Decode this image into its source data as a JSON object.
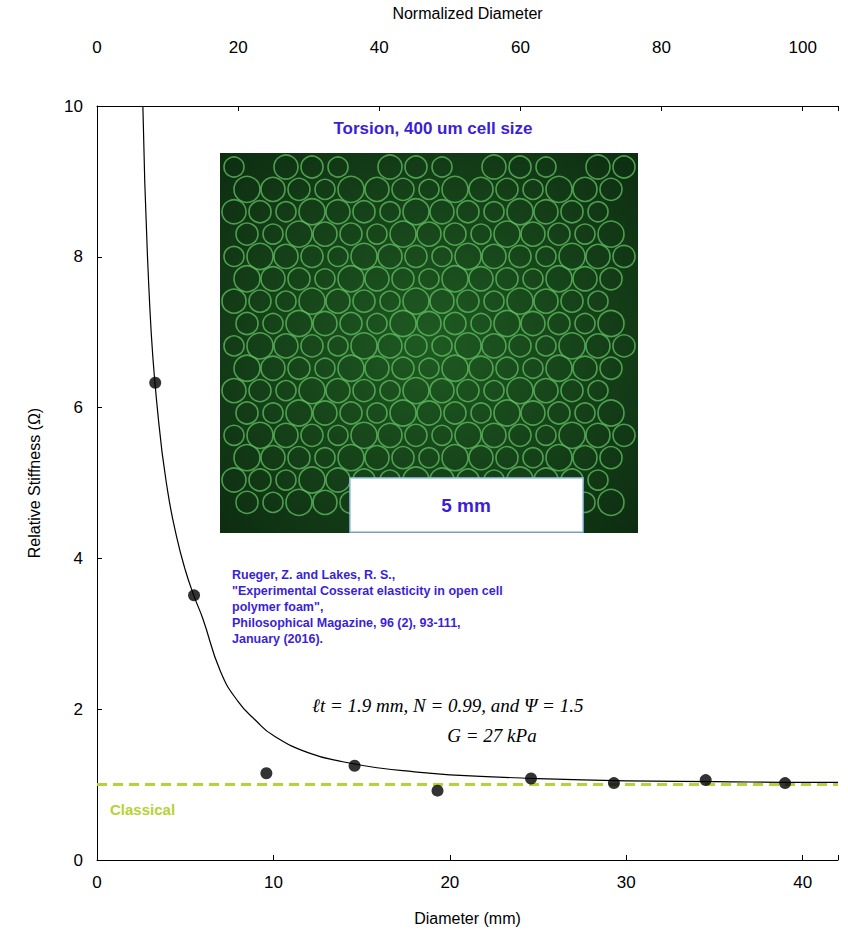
{
  "chart_data": {
    "type": "scatter",
    "title": "Torsion, 400 um cell size",
    "x_label": "Diameter (mm)",
    "x2_label": "Normalized Diameter",
    "y_label": "Relative Stiffness (Ω)",
    "xlim": [
      0,
      42
    ],
    "xticks": [
      0,
      10,
      20,
      30,
      40
    ],
    "x2lim": [
      0,
      105
    ],
    "x2ticks": [
      0,
      20,
      40,
      60,
      80,
      100
    ],
    "ylim": [
      0,
      10
    ],
    "yticks": [
      0,
      2,
      4,
      6,
      8,
      10
    ],
    "grid": false,
    "series": [
      {
        "type": "scatter",
        "color": "#000000",
        "marker": "circle",
        "x": [
          3.3,
          5.5,
          9.6,
          14.6,
          19.3,
          24.6,
          29.3,
          34.5,
          39.0
        ],
        "values": [
          6.33,
          3.51,
          1.15,
          1.25,
          0.92,
          1.08,
          1.02,
          1.06,
          1.02
        ]
      },
      {
        "type": "line",
        "color": "#000000",
        "line_style": "solid",
        "x": [
          2.6,
          3,
          3.5,
          4,
          4.5,
          5,
          5.5,
          6,
          7,
          8,
          9,
          10,
          12,
          14,
          16,
          18,
          20,
          25,
          30,
          35,
          40,
          42
        ],
        "values": [
          10,
          7.3,
          5.8,
          4.9,
          4.3,
          3.85,
          3.5,
          3.2,
          2.5,
          2.1,
          1.85,
          1.65,
          1.42,
          1.3,
          1.22,
          1.17,
          1.13,
          1.08,
          1.05,
          1.04,
          1.03,
          1.03
        ]
      },
      {
        "name": "Classical",
        "type": "line",
        "color": "#b5d334",
        "line_style": "dashed",
        "x": [
          0,
          42
        ],
        "values": [
          1,
          1
        ]
      }
    ],
    "inset_scale_bar": "5 mm",
    "citation": [
      "Rueger, Z. and Lakes, R. S.,",
      "\"Experimental Cosserat elasticity in open cell",
      "polymer foam\",",
      "Philosophical Magazine, 96 (2), 93-111,",
      "January (2016)."
    ],
    "parameters": [
      "ℓt = 1.9 mm, N = 0.99, and Ψ = 1.5",
      "G = 27 kPa"
    ]
  }
}
